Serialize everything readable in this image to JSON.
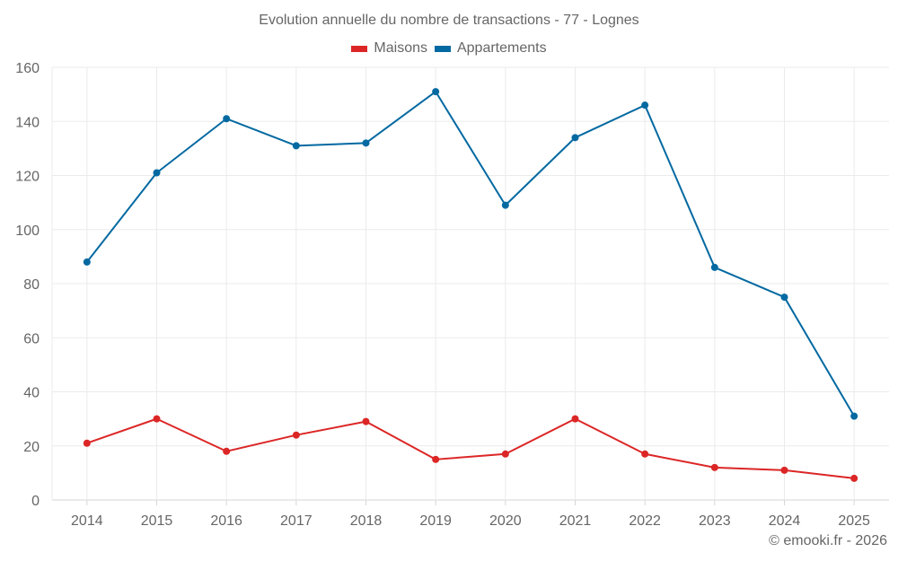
{
  "chart_data": {
    "type": "line",
    "title": "Evolution annuelle du nombre de transactions - 77 - Lognes",
    "xlabel": "",
    "ylabel": "",
    "categories": [
      "2014",
      "2015",
      "2016",
      "2017",
      "2018",
      "2019",
      "2020",
      "2021",
      "2022",
      "2023",
      "2024",
      "2025"
    ],
    "series": [
      {
        "name": "Maisons",
        "color": "#dc2626",
        "values": [
          21,
          30,
          18,
          24,
          29,
          15,
          17,
          30,
          17,
          12,
          11,
          8
        ]
      },
      {
        "name": "Appartements",
        "color": "#0369a1",
        "values": [
          88,
          121,
          141,
          131,
          132,
          151,
          109,
          134,
          146,
          86,
          75,
          31
        ]
      }
    ],
    "ylim": [
      0,
      160
    ],
    "yticks": [
      0,
      20,
      40,
      60,
      80,
      100,
      120,
      140,
      160
    ],
    "grid": true,
    "legend_position": "top-center"
  },
  "footer": {
    "copyright": "© emooki.fr - 2026"
  }
}
